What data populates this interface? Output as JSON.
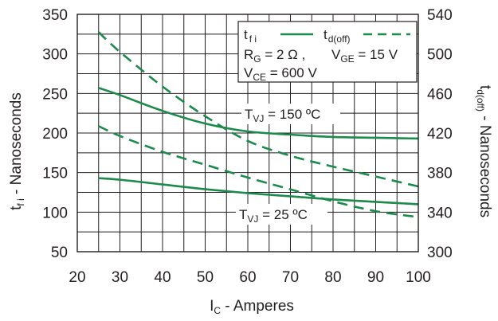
{
  "chart_data": {
    "type": "line",
    "xlabel": {
      "main": "I",
      "sub": "C",
      "rest": " - Amperes"
    },
    "ylabel_left": {
      "main": "t",
      "sub": "f i",
      "rest": " - Nanoseconds"
    },
    "ylabel_right": {
      "main": "t",
      "sub": "d(off)",
      "rest": " - Nanoseconds"
    },
    "xlim": [
      20,
      100
    ],
    "ylim_left": [
      50,
      350
    ],
    "ylim_right": [
      300,
      540
    ],
    "x_ticks": [
      "20",
      "30",
      "40",
      "50",
      "60",
      "70",
      "80",
      "90",
      "100"
    ],
    "y_left_ticks": [
      "50",
      "100",
      "150",
      "200",
      "250",
      "300",
      "350"
    ],
    "y_right_ticks": [
      "300",
      "340",
      "380",
      "420",
      "460",
      "500",
      "540"
    ],
    "grid": true,
    "legend_placement": "top-right",
    "legend": {
      "tfi": {
        "main": "t",
        "sub": "f i"
      },
      "tdoff": {
        "main": "t",
        "sub": "d(off)"
      }
    },
    "conditions": {
      "line1": {
        "rg_main": "R",
        "rg_sub": "G",
        "rg_rest": " = 2 Ω ,",
        "vge_main": "V",
        "vge_sub": "GE",
        "vge_rest": " = 15 V"
      },
      "line2": {
        "vce_main": "V",
        "vce_sub": "CE",
        "vce_rest": " = 600 V"
      }
    },
    "annotations": {
      "t150": {
        "main": "T",
        "sub": "VJ",
        "rest": " = 150 ºC"
      },
      "t25": {
        "main": "T",
        "sub": "VJ",
        "rest": " = 25 ºC"
      }
    },
    "colors": {
      "series": "#1b8a4a",
      "grid": "#231f20",
      "text": "#231f20"
    },
    "series": [
      {
        "axis": "left",
        "style": "solid",
        "temp": "150",
        "x": [
          25,
          30,
          40,
          50,
          60,
          70,
          80,
          90,
          100
        ],
        "y": [
          257,
          248,
          228,
          212,
          202,
          198,
          195,
          194,
          193
        ]
      },
      {
        "axis": "left",
        "style": "solid",
        "temp": "25",
        "x": [
          25,
          30,
          40,
          50,
          60,
          70,
          80,
          90,
          100
        ],
        "y": [
          143,
          141,
          135,
          129,
          124,
          120,
          116,
          113,
          110
        ]
      },
      {
        "axis": "right",
        "style": "dashed",
        "temp": "150",
        "x": [
          25,
          30,
          40,
          50,
          60,
          70,
          80,
          90,
          100
        ],
        "y": [
          522,
          502,
          467,
          437,
          412,
          397,
          386,
          376,
          366
        ]
      },
      {
        "axis": "right",
        "style": "dashed",
        "temp": "25",
        "x": [
          25,
          30,
          40,
          50,
          60,
          70,
          80,
          90,
          100
        ],
        "y": [
          427,
          417,
          401,
          388,
          375,
          363,
          351,
          341,
          335
        ]
      }
    ]
  }
}
